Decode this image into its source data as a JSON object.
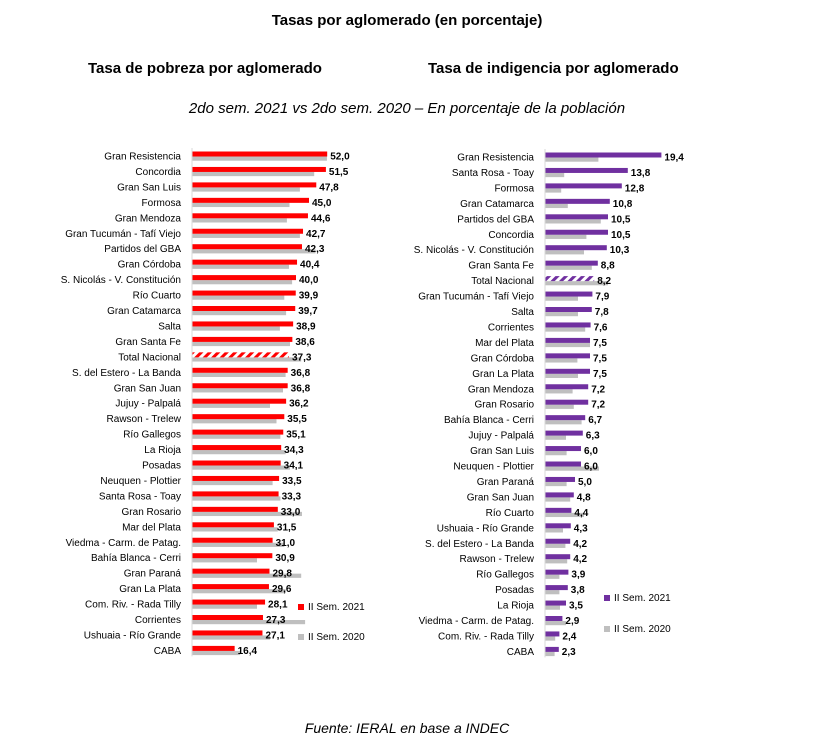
{
  "title": "Tasas por aglomerado (en porcentaje)",
  "subtitle": "2do sem. 2021 vs 2do sem. 2020 – En porcentaje de la población",
  "source": "Fuente: IERAL en base a INDEC",
  "colors": {
    "poverty_2021": "#ff0000",
    "indigence_2021": "#7030a0",
    "series_2020": "#bfbfbf"
  },
  "chart_data": [
    {
      "type": "bar",
      "title": "Tasa de pobreza por aglomerado",
      "orientation": "horizontal",
      "categories": [
        "Gran Resistencia",
        "Concordia",
        "Gran San Luis",
        "Formosa",
        "Gran Mendoza",
        "Gran Tucumán - Tafí Viejo",
        "Partidos del GBA",
        "Gran Córdoba",
        "S. Nicolás - V. Constitución",
        "Río Cuarto",
        "Gran Catamarca",
        "Salta",
        "Gran Santa Fe",
        "Total Nacional",
        "S. del Estero - La Banda",
        "Gran San Juan",
        "Jujuy - Palpalá",
        "Rawson - Trelew",
        "Río Gallegos",
        "La Rioja",
        "Posadas",
        "Neuquen - Plottier",
        "Santa Rosa - Toay",
        "Gran Rosario",
        "Mar del Plata",
        "Viedma - Carm. de Patag.",
        "Bahía Blanca - Cerri",
        "Gran Paraná",
        "Gran La Plata",
        "Com. Riv. - Rada Tilly",
        "Corrientes",
        "Ushuaia - Río Grande",
        "CABA"
      ],
      "value_labels": [
        "52,0",
        "51,5",
        "47,8",
        "45,0",
        "44,6",
        "42,7",
        "42,3",
        "40,4",
        "40,0",
        "39,9",
        "39,7",
        "38,9",
        "38,6",
        "37,3",
        "36,8",
        "36,8",
        "36,2",
        "35,5",
        "35,1",
        "34,3",
        "34,1",
        "33,5",
        "33,3",
        "33,0",
        "31,5",
        "31,0",
        "30,9",
        "29,8",
        "29,6",
        "28,1",
        "27,3",
        "27,1",
        "16,4"
      ],
      "series": [
        {
          "name": "II Sem. 2021",
          "values": [
            52.0,
            51.5,
            47.8,
            45.0,
            44.6,
            42.7,
            42.3,
            40.4,
            40.0,
            39.9,
            39.7,
            38.9,
            38.6,
            37.3,
            36.8,
            36.8,
            36.2,
            35.5,
            35.1,
            34.3,
            34.1,
            33.5,
            33.3,
            33.0,
            31.5,
            31.0,
            30.9,
            29.8,
            29.6,
            28.1,
            27.3,
            27.1,
            16.4
          ]
        },
        {
          "name": "II Sem. 2020",
          "values": [
            51.9,
            47.0,
            41.5,
            37.5,
            36.5,
            41.5,
            47.5,
            37.3,
            38.5,
            35.5,
            36.2,
            33.8,
            37.7,
            42.0,
            36.0,
            35.0,
            30.0,
            32.5,
            34.0,
            36.0,
            37.7,
            31.0,
            34.0,
            42.3,
            33.0,
            35.5,
            25.0,
            42.0,
            36.0,
            25.0,
            43.5,
            30.0,
            18.5
          ]
        }
      ],
      "highlight": "Total Nacional",
      "legend_position": "bottom-right",
      "ylim": [
        0,
        60
      ]
    },
    {
      "type": "bar",
      "title": "Tasa de indigencia por aglomerado",
      "orientation": "horizontal",
      "categories": [
        "Gran Resistencia",
        "Santa Rosa - Toay",
        "Formosa",
        "Gran Catamarca",
        "Partidos del GBA",
        "Concordia",
        "S. Nicolás - V. Constitución",
        "Gran Santa Fe",
        "Total Nacional",
        "Gran Tucumán - Tafí Viejo",
        "Salta",
        "Corrientes",
        "Mar del Plata",
        "Gran Córdoba",
        "Gran La Plata",
        "Gran Mendoza",
        "Gran Rosario",
        "Bahía Blanca - Cerri",
        "Jujuy - Palpalá",
        "Gran San Luis",
        "Neuquen - Plottier",
        "Gran Paraná",
        "Gran San Juan",
        "Río Cuarto",
        "Ushuaia - Río Grande",
        "S. del Estero - La Banda",
        "Rawson - Trelew",
        "Río Gallegos",
        "Posadas",
        "La Rioja",
        "Viedma - Carm. de Patag.",
        "Com. Riv. - Rada Tilly",
        "CABA"
      ],
      "value_labels": [
        "19,4",
        "13,8",
        "12,8",
        "10,8",
        "10,5",
        "10,5",
        "10,3",
        "8,8",
        "8,2",
        "7,9",
        "7,8",
        "7,6",
        "7,5",
        "7,5",
        "7,5",
        "7,2",
        "7,2",
        "6,7",
        "6,3",
        "6,0",
        "6,0",
        "5,0",
        "4,8",
        "4,4",
        "4,3",
        "4,2",
        "4,2",
        "3,9",
        "3,8",
        "3,5",
        "2,9",
        "2,4",
        "2,3"
      ],
      "series": [
        {
          "name": "II Sem. 2021",
          "values": [
            19.4,
            13.8,
            12.8,
            10.8,
            10.5,
            10.5,
            10.3,
            8.8,
            8.2,
            7.9,
            7.8,
            7.6,
            7.5,
            7.5,
            7.5,
            7.2,
            7.2,
            6.7,
            6.3,
            6.0,
            6.0,
            5.0,
            4.8,
            4.4,
            4.3,
            4.2,
            4.2,
            3.9,
            3.8,
            3.5,
            2.9,
            2.4,
            2.3
          ]
        },
        {
          "name": "II Sem. 2020",
          "values": [
            8.9,
            3.2,
            2.7,
            3.8,
            9.3,
            6.9,
            6.5,
            7.8,
            10.5,
            5.5,
            5.5,
            6.7,
            7.5,
            5.4,
            5.5,
            4.6,
            4.8,
            6.1,
            3.5,
            3.6,
            9.0,
            3.6,
            4.2,
            6.5,
            3.0,
            3.4,
            3.7,
            2.4,
            2.4,
            2.5,
            3.5,
            1.7,
            1.6
          ]
        }
      ],
      "highlight": "Total Nacional",
      "legend_position": "bottom-right",
      "ylim": [
        0,
        22
      ]
    }
  ]
}
